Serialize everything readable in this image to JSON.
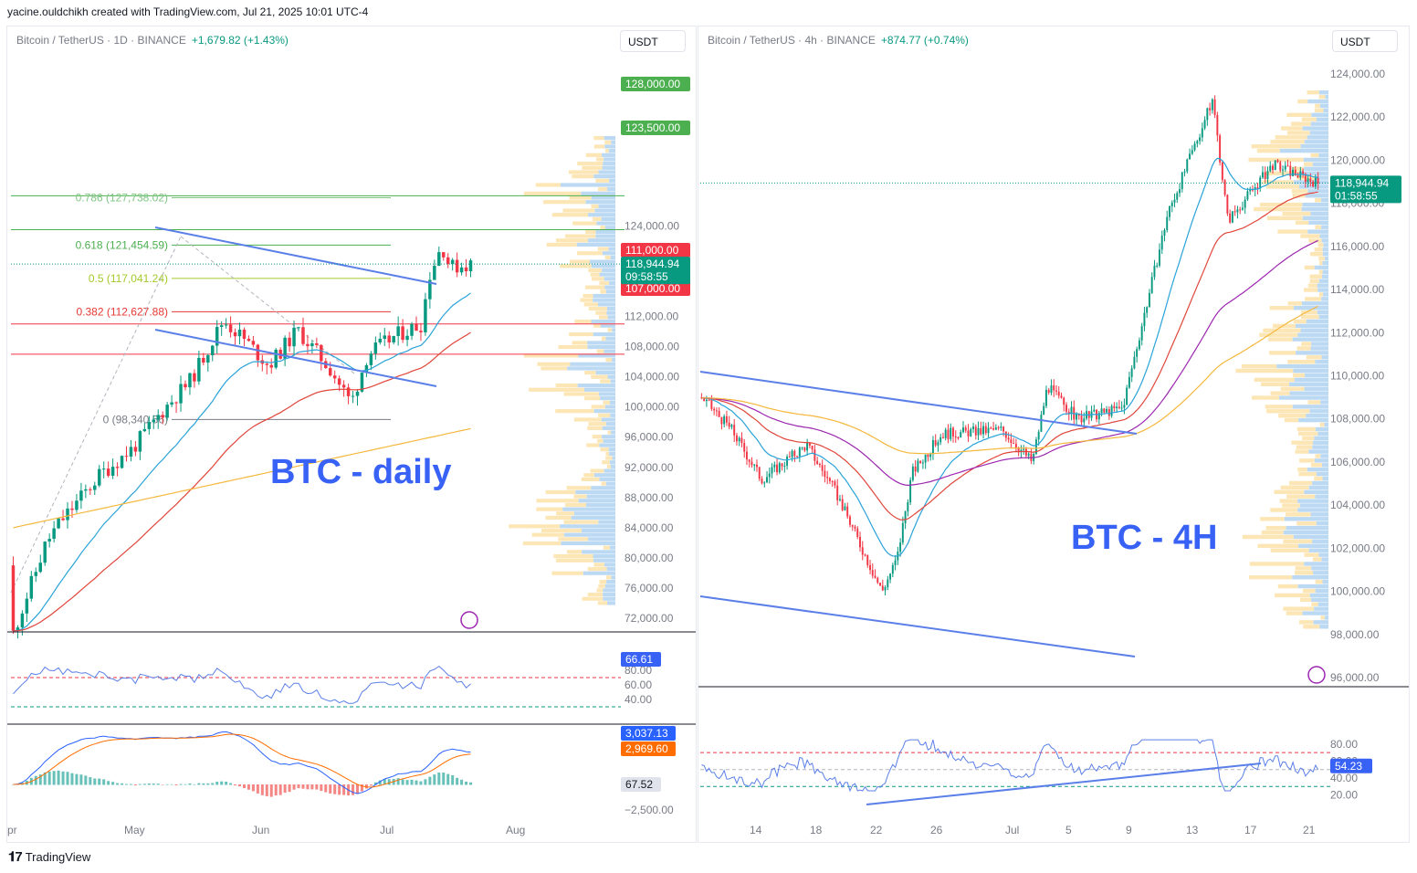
{
  "credit": "yacine.ouldchikh created with TradingView.com, Jul 21, 2025 10:01 UTC-4",
  "footer": {
    "brand": "TradingView"
  },
  "colors": {
    "up": "#089981",
    "down": "#f23645",
    "trend": "#5b7fe8",
    "ema20": "#2aa3d9",
    "ema50": "#e0453a",
    "ema100": "#9c27b0",
    "ema200": "#f5b73b",
    "vp_buy": "#bcd9f3",
    "vp_sell": "#fde6b5",
    "label_blue": "#3861f6"
  },
  "left": {
    "header": {
      "symbol": "Bitcoin / TetherUS · 1D · BINANCE",
      "change": "+1,679.82 (+1.43%)"
    },
    "currency": "USDT",
    "annotation": "BTC - daily",
    "price_ticks": [
      "72,000.00",
      "76,000.00",
      "80,000.00",
      "84,000.00",
      "88,000.00",
      "92,000.00",
      "96,000.00",
      "100,000.00",
      "104,000.00",
      "108,000.00",
      "112,000.00",
      "116,000.00",
      "120,000.00",
      "124,000.00"
    ],
    "x_ticks": [
      "pr",
      "May",
      "Jun",
      "Jul",
      "Aug"
    ],
    "fib_levels": [
      {
        "label": "0.786 (127,738.02)",
        "price": 127738.02,
        "color": "#81c784"
      },
      {
        "label": "0.618 (121,454.59)",
        "price": 121454.59,
        "color": "#4caf50"
      },
      {
        "label": "0.5 (117,041.24)",
        "price": 117041.24,
        "color": "#a5c92b"
      },
      {
        "label": "0.382 (112,627.88)",
        "price": 112627.88,
        "color": "#e53935"
      },
      {
        "label": "0 (98,340.56)",
        "price": 98340.56,
        "color": "#787b86"
      }
    ],
    "hlines": [
      {
        "label": "128,000.00",
        "price": 128000,
        "color": "#4caf50"
      },
      {
        "label": "123,500.00",
        "price": 123500,
        "color": "#4caf50"
      },
      {
        "label": "111,000.00",
        "price": 111000,
        "color": "#f23645"
      },
      {
        "label": "107,000.00",
        "price": 107000,
        "color": "#f23645"
      }
    ],
    "last_price": {
      "price": "118,944.94",
      "countdown": "09:58:55",
      "value": 118944.94
    },
    "rsi": {
      "value": "66.61",
      "ticks": [
        "80.00",
        "60.00",
        "40.00"
      ]
    },
    "macd": {
      "macd": "3,037.13",
      "signal": "2,969.60",
      "hist": "67.52",
      "tick": "−2,500.00"
    }
  },
  "right": {
    "header": {
      "symbol": "Bitcoin / TetherUS · 4h · BINANCE",
      "change": "+874.77 (+0.74%)"
    },
    "currency": "USDT",
    "annotation": "BTC - 4H",
    "price_ticks": [
      "96,000.00",
      "98,000.00",
      "100,000.00",
      "102,000.00",
      "104,000.00",
      "106,000.00",
      "108,000.00",
      "110,000.00",
      "112,000.00",
      "114,000.00",
      "116,000.00",
      "118,000.00",
      "120,000.00",
      "122,000.00",
      "124,000.00"
    ],
    "x_ticks": [
      "14",
      "18",
      "22",
      "26",
      "Jul",
      "5",
      "9",
      "13",
      "17",
      "21"
    ],
    "last_price": {
      "price": "118,944.94",
      "countdown": "01:58:55",
      "value": 118944.94
    },
    "rsi": {
      "value": "54.23",
      "ticks": [
        "80.00",
        "60.00",
        "40.00",
        "20.00"
      ]
    }
  },
  "chart_data": [
    {
      "type": "candlestick",
      "title": "Bitcoin / TetherUS · 1D · BINANCE",
      "x_range": [
        "Apr",
        "Aug"
      ],
      "ylim": [
        72000,
        124000
      ],
      "close_path": [
        {
          "x": "Apr 7",
          "y": 79000
        },
        {
          "x": "Apr 9",
          "y": 82000
        },
        {
          "x": "Apr 12",
          "y": 84500
        },
        {
          "x": "Apr 22",
          "y": 91000
        },
        {
          "x": "Apr 30",
          "y": 94500
        },
        {
          "x": "May 8",
          "y": 100000
        },
        {
          "x": "May 14",
          "y": 103500
        },
        {
          "x": "May 22",
          "y": 111500
        },
        {
          "x": "May 27",
          "y": 109000
        },
        {
          "x": "Jun 2",
          "y": 105500
        },
        {
          "x": "Jun 9",
          "y": 110200
        },
        {
          "x": "Jun 17",
          "y": 105000
        },
        {
          "x": "Jun 22",
          "y": 100500
        },
        {
          "x": "Jun 26",
          "y": 107000
        },
        {
          "x": "Jul 3",
          "y": 109500
        },
        {
          "x": "Jul 9",
          "y": 111000
        },
        {
          "x": "Jul 11",
          "y": 117500
        },
        {
          "x": "Jul 14",
          "y": 121500
        },
        {
          "x": "Jul 16",
          "y": 118500
        },
        {
          "x": "Jul 21",
          "y": 118944.94
        }
      ]
    },
    {
      "type": "candlestick",
      "title": "Bitcoin / TetherUS · 4h · BINANCE",
      "x_range": [
        "Jun 10",
        "Jul 21"
      ],
      "ylim": [
        96000,
        124000
      ],
      "close_path": [
        {
          "x": "Jun 10",
          "y": 109000
        },
        {
          "x": "Jun 12",
          "y": 107500
        },
        {
          "x": "Jun 14",
          "y": 105200
        },
        {
          "x": "Jun 17",
          "y": 106800
        },
        {
          "x": "Jun 19",
          "y": 104500
        },
        {
          "x": "Jun 22",
          "y": 100000
        },
        {
          "x": "Jun 23",
          "y": 101500
        },
        {
          "x": "Jun 24",
          "y": 105500
        },
        {
          "x": "Jun 26",
          "y": 107300
        },
        {
          "x": "Jun 30",
          "y": 107500
        },
        {
          "x": "Jul 2",
          "y": 106000
        },
        {
          "x": "Jul 3",
          "y": 109500
        },
        {
          "x": "Jul 5",
          "y": 108000
        },
        {
          "x": "Jul 8",
          "y": 108500
        },
        {
          "x": "Jul 9",
          "y": 111500
        },
        {
          "x": "Jul 11",
          "y": 117500
        },
        {
          "x": "Jul 14",
          "y": 122800
        },
        {
          "x": "Jul 15",
          "y": 117200
        },
        {
          "x": "Jul 18",
          "y": 119800
        },
        {
          "x": "Jul 21",
          "y": 118944.94
        }
      ]
    }
  ]
}
